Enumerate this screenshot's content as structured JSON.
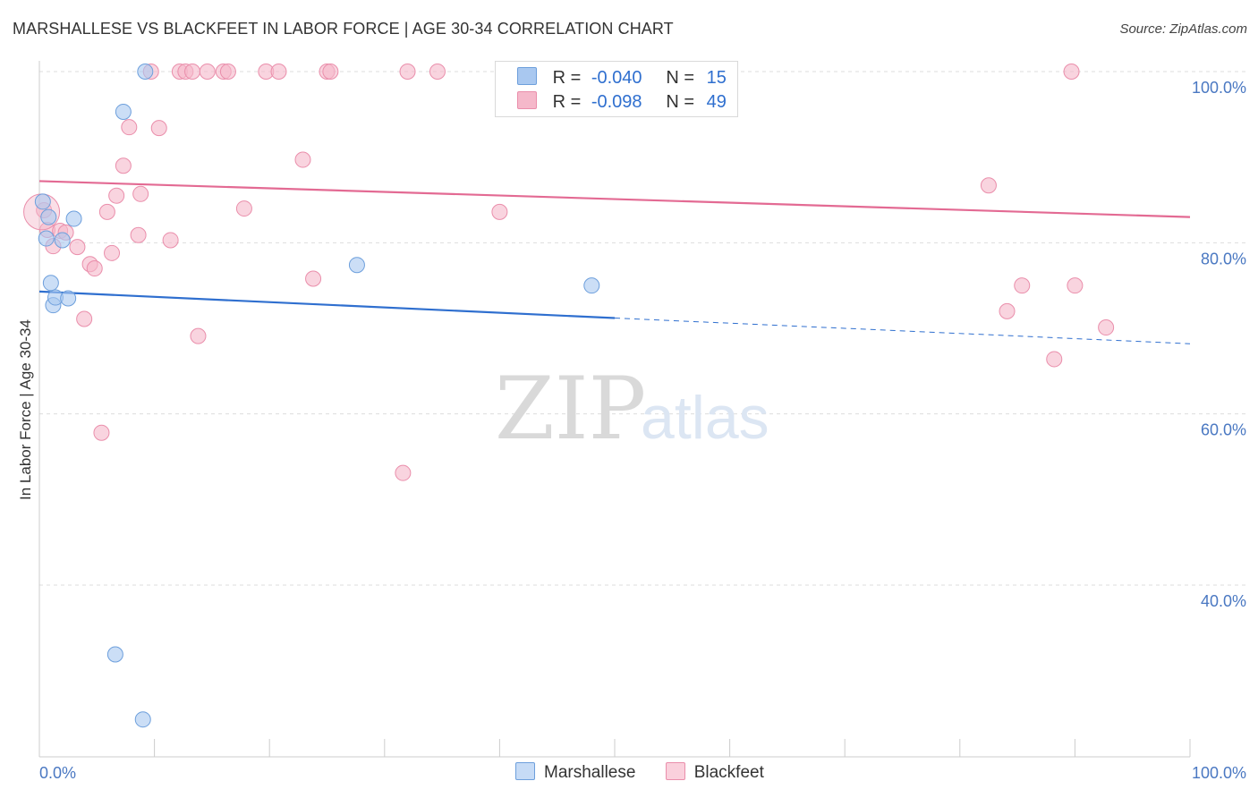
{
  "header": {
    "title": "MARSHALLESE VS BLACKFEET IN LABOR FORCE | AGE 30-34 CORRELATION CHART",
    "source": "Source: ZipAtlas.com"
  },
  "watermark": {
    "zip": "ZIP",
    "atlas": "atlas"
  },
  "legend": {
    "rows": [
      {
        "r_label": "R =",
        "r_value": "-0.040",
        "n_label": "N =",
        "n_value": "15",
        "color": "#a9c8f0"
      },
      {
        "r_label": "R =",
        "r_value": "-0.098",
        "n_label": "N =",
        "n_value": "49",
        "color": "#f5b8ca"
      }
    ]
  },
  "bottom_legend": {
    "items": [
      "Marshallese",
      "Blackfeet"
    ]
  },
  "colors": {
    "marshallese_fill": "#a9c8f0",
    "marshallese_stroke": "#6d9fdc",
    "marshallese_line": "#2f6fcf",
    "blackfeet_fill": "#f5b8ca",
    "blackfeet_stroke": "#ea8eab",
    "blackfeet_line": "#e36a93",
    "tick_label": "#4a78c2"
  },
  "chart_data": {
    "type": "scatter",
    "title": "MARSHALLESE VS BLACKFEET IN LABOR FORCE | AGE 30-34 CORRELATION CHART",
    "xlabel": "",
    "ylabel": "In Labor Force | Age 30-34",
    "xlim": [
      0,
      100
    ],
    "ylim": [
      22,
      102
    ],
    "x_tick_labels": [
      "0.0%",
      "100.0%"
    ],
    "y_ticks": [
      40,
      60,
      80,
      100
    ],
    "y_tick_labels": [
      "40.0%",
      "60.0%",
      "80.0%",
      "100.0%"
    ],
    "grid": true,
    "series": [
      {
        "name": "Marshallese",
        "R": -0.04,
        "N": 15,
        "trend": {
          "x0": 0,
          "y0": 74.3,
          "x1": 50,
          "y1": 71.2,
          "dashed_to_x": 100,
          "dashed_to_y": 68.2
        },
        "points": [
          [
            0.3,
            84.8
          ],
          [
            0.6,
            80.5
          ],
          [
            0.8,
            83.0
          ],
          [
            1.0,
            75.3
          ],
          [
            1.2,
            72.7
          ],
          [
            1.4,
            73.6
          ],
          [
            2.0,
            80.3
          ],
          [
            2.5,
            73.5
          ],
          [
            3.0,
            82.8
          ],
          [
            7.3,
            95.3
          ],
          [
            9.2,
            100.0
          ],
          [
            27.6,
            77.4
          ],
          [
            48.0,
            75.0
          ],
          [
            6.6,
            31.9
          ],
          [
            9.0,
            24.3
          ]
        ]
      },
      {
        "name": "Blackfeet",
        "R": -0.098,
        "N": 49,
        "trend": {
          "x0": 0,
          "y0": 87.2,
          "x1": 100,
          "y1": 83.0
        },
        "points": [
          [
            0.4,
            83.8
          ],
          [
            0.7,
            81.5
          ],
          [
            1.2,
            79.6
          ],
          [
            1.8,
            81.4
          ],
          [
            2.3,
            81.2
          ],
          [
            3.3,
            79.5
          ],
          [
            3.9,
            71.1
          ],
          [
            4.4,
            77.5
          ],
          [
            4.8,
            77.0
          ],
          [
            5.4,
            57.8
          ],
          [
            5.9,
            83.6
          ],
          [
            6.3,
            78.8
          ],
          [
            6.7,
            85.5
          ],
          [
            7.3,
            89.0
          ],
          [
            7.8,
            93.5
          ],
          [
            8.6,
            80.9
          ],
          [
            8.8,
            85.7
          ],
          [
            9.7,
            100.0
          ],
          [
            10.4,
            93.4
          ],
          [
            11.4,
            80.3
          ],
          [
            12.2,
            100.0
          ],
          [
            12.7,
            100.0
          ],
          [
            13.3,
            100.0
          ],
          [
            13.8,
            69.1
          ],
          [
            14.6,
            100.0
          ],
          [
            16.0,
            100.0
          ],
          [
            16.4,
            100.0
          ],
          [
            17.8,
            84.0
          ],
          [
            19.7,
            100.0
          ],
          [
            20.8,
            100.0
          ],
          [
            22.9,
            89.7
          ],
          [
            23.8,
            75.8
          ],
          [
            25.0,
            100.0
          ],
          [
            25.3,
            100.0
          ],
          [
            31.6,
            53.1
          ],
          [
            32.0,
            100.0
          ],
          [
            34.6,
            100.0
          ],
          [
            40.0,
            83.6
          ],
          [
            40.4,
            100.0
          ],
          [
            47.1,
            100.0
          ],
          [
            47.5,
            100.0
          ],
          [
            82.5,
            86.7
          ],
          [
            84.1,
            72.0
          ],
          [
            85.4,
            75.0
          ],
          [
            88.2,
            66.4
          ],
          [
            89.7,
            100.0
          ],
          [
            90.0,
            75.0
          ],
          [
            92.7,
            70.1
          ],
          [
            0.2,
            83.6
          ]
        ]
      }
    ]
  }
}
